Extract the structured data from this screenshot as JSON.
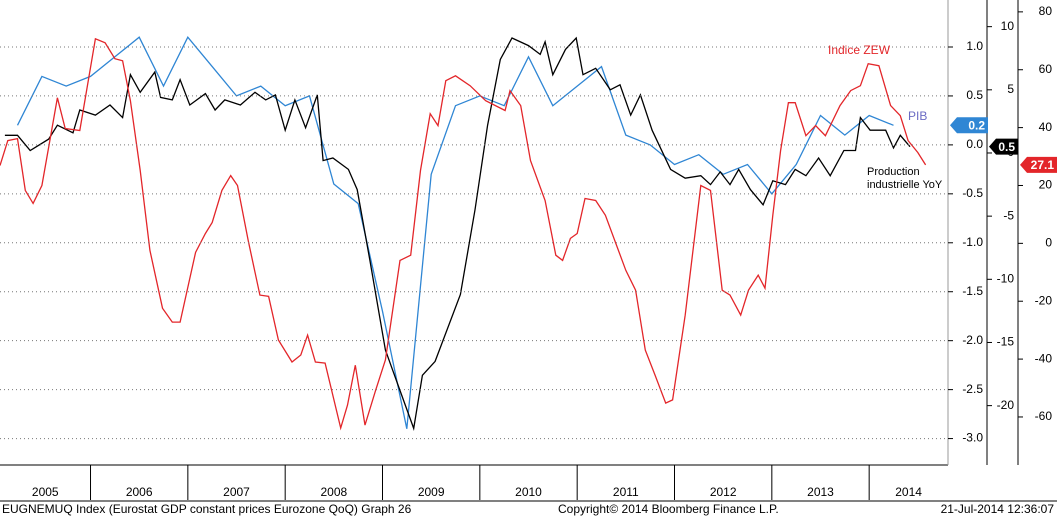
{
  "chart_data": {
    "type": "line",
    "categories": [
      "2005",
      "2006",
      "2007",
      "2008",
      "2009",
      "2010",
      "2011",
      "2012",
      "2013",
      "2014"
    ],
    "xlim": [
      2005.07,
      2014.81
    ],
    "ylim": [
      -3.27,
      1.48
    ],
    "yticks": [
      {
        "value": 1.0,
        "label": "1.0"
      },
      0.5,
      {
        "value": 0.0,
        "label": "0.0"
      },
      -0.5,
      {
        "value": -1.0,
        "label": "-1.0"
      },
      -1.5,
      {
        "value": -2.0,
        "label": "-2.0"
      },
      -2.5,
      {
        "value": -3.0,
        "label": "-3.0"
      }
    ],
    "y2lim": [
      -24.7,
      12.11
    ],
    "y2ticks": [
      10,
      5,
      0,
      -5,
      -10,
      -15,
      -20
    ],
    "y3lim": [
      -76.6,
      84.1
    ],
    "y3ticks": [
      80,
      60,
      40,
      20,
      0,
      -20,
      -40,
      -60
    ],
    "grid": true,
    "series": [
      {
        "name": "PIB",
        "color": "#2f86d4",
        "axis": "y",
        "x": [
          2005.25,
          2005.5,
          2005.75,
          2006.0,
          2006.25,
          2006.5,
          2006.75,
          2007.0,
          2007.25,
          2007.5,
          2007.75,
          2008.0,
          2008.25,
          2008.5,
          2008.75,
          2009.0,
          2009.25,
          2009.5,
          2009.75,
          2010.0,
          2010.25,
          2010.5,
          2010.75,
          2011.0,
          2011.25,
          2011.5,
          2011.75,
          2012.0,
          2012.25,
          2012.5,
          2012.75,
          2013.0,
          2013.25,
          2013.5,
          2013.75,
          2014.0,
          2014.25
        ],
        "values": [
          0.2,
          0.7,
          0.6,
          0.7,
          0.9,
          1.1,
          0.6,
          1.1,
          0.8,
          0.5,
          0.6,
          0.4,
          0.5,
          -0.4,
          -0.6,
          -1.7,
          -2.9,
          -0.3,
          0.4,
          0.5,
          0.4,
          0.9,
          0.4,
          0.6,
          0.8,
          0.1,
          0.0,
          -0.2,
          -0.1,
          -0.3,
          -0.2,
          -0.5,
          -0.2,
          0.3,
          0.1,
          0.3,
          0.2
        ]
      },
      {
        "name": "Production industrielle YoY",
        "color": "#000000",
        "axis": "y2",
        "x": [
          2005.12,
          2005.25,
          2005.38,
          2005.57,
          2005.66,
          2005.82,
          2005.89,
          2006.05,
          2006.2,
          2006.33,
          2006.41,
          2006.51,
          2006.66,
          2006.72,
          2006.84,
          2006.92,
          2007.02,
          2007.18,
          2007.28,
          2007.38,
          2007.54,
          2007.69,
          2007.8,
          2007.9,
          2008.0,
          2008.1,
          2008.21,
          2008.33,
          2008.39,
          2008.49,
          2008.65,
          2008.74,
          2008.87,
          2009.03,
          2009.18,
          2009.32,
          2009.41,
          2009.54,
          2009.8,
          2009.95,
          2010.08,
          2010.21,
          2010.33,
          2010.5,
          2010.62,
          2010.67,
          2010.75,
          2010.88,
          2010.99,
          2011.06,
          2011.19,
          2011.34,
          2011.44,
          2011.55,
          2011.65,
          2011.77,
          2011.96,
          2012.11,
          2012.27,
          2012.37,
          2012.47,
          2012.57,
          2012.66,
          2012.78,
          2012.91,
          2013.01,
          2013.14,
          2013.24,
          2013.35,
          2013.48,
          2013.6,
          2013.74,
          2013.86,
          2013.91,
          2014.01,
          2014.17,
          2014.25,
          2014.32,
          2014.42
        ],
        "values": [
          1.4,
          1.4,
          0.2,
          1.1,
          2.2,
          1.6,
          3.4,
          3.0,
          3.8,
          2.8,
          6.2,
          4.8,
          6.4,
          4.4,
          4.2,
          5.8,
          3.8,
          4.7,
          3.4,
          4.2,
          3.8,
          4.8,
          4.2,
          4.6,
          1.8,
          4.2,
          2.0,
          4.6,
          -0.6,
          -0.4,
          -1.3,
          -2.9,
          -8.5,
          -15.6,
          -18.8,
          -21.8,
          -17.6,
          -16.5,
          -11.2,
          -4.5,
          2.2,
          7.4,
          9.1,
          8.5,
          7.8,
          8.8,
          6.2,
          8.2,
          9.1,
          6.2,
          6.7,
          5.0,
          5.4,
          3.0,
          4.6,
          1.8,
          -1.3,
          -2.0,
          -1.8,
          -2.5,
          -1.5,
          -2.5,
          -1.3,
          -2.9,
          -4.1,
          -2.2,
          -2.5,
          -1.3,
          -1.8,
          -0.4,
          -1.8,
          0.2,
          0.2,
          2.8,
          1.8,
          1.8,
          0.4,
          1.4,
          0.5
        ]
      },
      {
        "name": "Indice ZEW",
        "color": "#e3262a",
        "axis": "y3",
        "x": [
          2005.07,
          2005.15,
          2005.25,
          2005.33,
          2005.41,
          2005.5,
          2005.66,
          2005.74,
          2005.89,
          2006.05,
          2006.15,
          2006.25,
          2006.33,
          2006.41,
          2006.51,
          2006.61,
          2006.74,
          2006.84,
          2006.92,
          2007.08,
          2007.18,
          2007.25,
          2007.35,
          2007.44,
          2007.51,
          2007.62,
          2007.74,
          2007.83,
          2007.93,
          2008.07,
          2008.16,
          2008.23,
          2008.31,
          2008.41,
          2008.57,
          2008.64,
          2008.72,
          2008.82,
          2008.93,
          2009.03,
          2009.18,
          2009.29,
          2009.39,
          2009.49,
          2009.57,
          2009.65,
          2009.75,
          2009.9,
          2010.06,
          2010.26,
          2010.31,
          2010.42,
          2010.52,
          2010.67,
          2010.78,
          2010.85,
          2010.93,
          2011.0,
          2011.08,
          2011.19,
          2011.29,
          2011.5,
          2011.6,
          2011.7,
          2011.8,
          2011.91,
          2011.98,
          2012.11,
          2012.27,
          2012.37,
          2012.49,
          2012.57,
          2012.68,
          2012.76,
          2012.86,
          2012.93,
          2013.01,
          2013.09,
          2013.17,
          2013.24,
          2013.35,
          2013.45,
          2013.55,
          2013.7,
          2013.81,
          2013.91,
          2013.99,
          2014.1,
          2014.22,
          2014.32,
          2014.4,
          2014.5,
          2014.58
        ],
        "values": [
          26.9,
          35.5,
          36.2,
          18.3,
          13.8,
          20,
          50.3,
          39.7,
          39,
          70.7,
          69.3,
          63.8,
          63.1,
          49.3,
          25.2,
          -2.4,
          -22.4,
          -27.2,
          -27.2,
          -3.1,
          3.4,
          7.2,
          18.3,
          23.4,
          20,
          1,
          -17.9,
          -18.3,
          -33.4,
          -41,
          -38.6,
          -31.7,
          -41,
          -41.4,
          -63.8,
          -55.9,
          -42.1,
          -62.8,
          -50.7,
          -40.3,
          -5.9,
          -4.1,
          25.2,
          44.8,
          40.7,
          56.2,
          57.9,
          54.5,
          49.3,
          45.9,
          52.8,
          47.6,
          28.6,
          14.8,
          -4.1,
          -5.9,
          1.7,
          3.4,
          15.5,
          14.8,
          9.7,
          -9.3,
          -16.2,
          -36.9,
          -45.5,
          -55.2,
          -54.1,
          -24.8,
          20,
          18.3,
          -16.2,
          -17.9,
          -24.8,
          -16.2,
          -11,
          -15.5,
          9.7,
          32.1,
          48.6,
          48.6,
          37.2,
          40.7,
          37.2,
          47.6,
          52.8,
          54.5,
          62.1,
          61.4,
          47.6,
          44.1,
          35.5,
          31.4,
          27.1
        ]
      }
    ]
  },
  "footer": {
    "source": "EUGNEMUQ Index (Eurostat GDP constant prices Eurozone QoQ) Graph 26",
    "copyright": "Copyright© 2014 Bloomberg Finance L.P.",
    "timestamp": "21-Jul-2014 12:36:07"
  }
}
